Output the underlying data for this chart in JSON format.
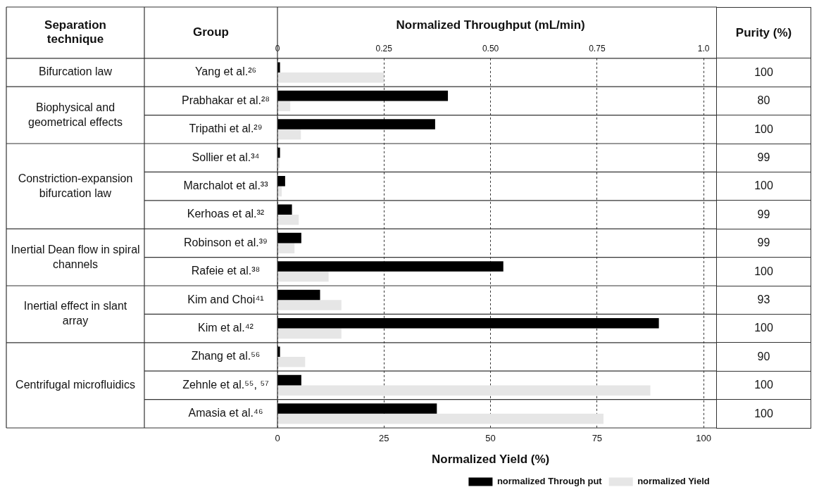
{
  "chart_data": {
    "type": "bar",
    "orientation": "horizontal",
    "categories": [
      "Yang et al.²⁶",
      "Prabhakar et al.²⁸",
      "Tripathi et al.²⁹",
      "Sollier et al.³⁴",
      "Marchalot et al.³³",
      "Kerhoas et al.³²",
      "Robinson et al.³⁹",
      "Rafeie et al.³⁸",
      "Kim and Choi⁴¹",
      "Kim et al.⁴²",
      "Zhang et al.⁵⁶",
      "Zehnle et al.⁵⁵, ⁵⁷",
      "Amasia et al.⁴⁶"
    ],
    "series": [
      {
        "name": "normalized Through put",
        "color": "#000000",
        "axis": "x2",
        "values": [
          0.006,
          0.4,
          0.37,
          0.006,
          0.018,
          0.034,
          0.056,
          0.53,
          0.1,
          0.895,
          0.006,
          0.056,
          0.374
        ]
      },
      {
        "name": "normalized Yield",
        "color": "#e6e6e6",
        "values": [
          25,
          3,
          5.5,
          0.5,
          1,
          5,
          4,
          12,
          15,
          15,
          6.5,
          87.5,
          76.5
        ]
      }
    ],
    "xlabel": "Normalized Yield (%)",
    "x2label": "Normalized Throughput (mL/min)",
    "xlim": [
      0,
      100
    ],
    "xticks": [
      0,
      25,
      50,
      75,
      100
    ],
    "x2lim": [
      0,
      1
    ],
    "x2ticks": [
      0,
      0.25,
      {
        "value": 0.5,
        "label": "0.50"
      },
      0.75,
      {
        "value": 1,
        "label": "1.0"
      }
    ],
    "grid": "x",
    "legend": "bottom right",
    "annotations": [
      "Separation technique",
      "Group",
      "Purity (%)",
      "Bifurcation law",
      "Biophysical and geometrical effects",
      "Constriction-expansion bifurcation law",
      "Inertial Dean flow in spiral channels",
      "Inertial effect in slant array",
      "Centrifugal microfluidics",
      "100",
      "80",
      "100",
      "99",
      "100",
      "99",
      "99",
      "100",
      "93",
      "100",
      "90",
      "100",
      "100"
    ]
  }
}
